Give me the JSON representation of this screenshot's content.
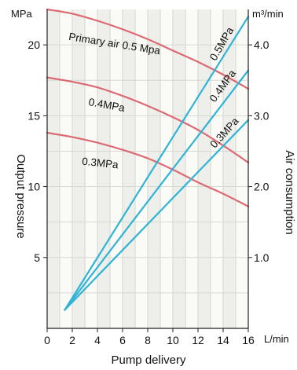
{
  "chart_data": {
    "type": "line",
    "xlabel": "Pump delivery",
    "x_unit": "L/min",
    "xlim": [
      0,
      16
    ],
    "x_ticks": [
      0,
      2,
      4,
      6,
      8,
      10,
      12,
      14,
      16
    ],
    "ylabel_left": "Output pressure",
    "y_unit_left": "MPa",
    "ylim_left": [
      0,
      22.5
    ],
    "y_ticks_left": [
      5,
      10,
      15,
      20
    ],
    "ylabel_right": "Air consumption",
    "y_unit_right": "m³/min",
    "ylim_right": [
      0,
      4.5
    ],
    "y_ticks_right": [
      "1.0",
      "2.0",
      "3.0",
      "4.0"
    ],
    "grid": true,
    "colors": {
      "pressure": "#dc6a72",
      "air": "#2fb3d6",
      "grid": "#d8d8d2",
      "stripe": "#eeeeea"
    },
    "series": [
      {
        "name": "Primary air 0.5 Mpa",
        "kind": "output-pressure",
        "axis": "left",
        "x": [
          0,
          2,
          4,
          6,
          8,
          10,
          12,
          14,
          16
        ],
        "y": [
          22.5,
          22.2,
          21.7,
          21.1,
          20.4,
          19.6,
          18.8,
          17.9,
          16.9
        ]
      },
      {
        "name": "0.4MPa",
        "kind": "output-pressure",
        "axis": "left",
        "x": [
          0,
          2,
          4,
          6,
          8,
          10,
          12,
          14,
          16
        ],
        "y": [
          17.7,
          17.4,
          17.0,
          16.4,
          15.7,
          14.9,
          14.0,
          12.9,
          11.7
        ]
      },
      {
        "name": "0.3MPa",
        "kind": "output-pressure",
        "axis": "left",
        "x": [
          0,
          2,
          4,
          6,
          8,
          10,
          12,
          14,
          16
        ],
        "y": [
          13.8,
          13.5,
          13.1,
          12.6,
          12.0,
          11.2,
          10.3,
          9.5,
          8.6
        ]
      },
      {
        "name": "0.5MPa",
        "kind": "air-consumption",
        "axis": "right",
        "x": [
          1.4,
          16
        ],
        "y": [
          0.26,
          4.4
        ]
      },
      {
        "name": "0.4MPa",
        "kind": "air-consumption",
        "axis": "right",
        "x": [
          1.4,
          16
        ],
        "y": [
          0.26,
          3.64
        ]
      },
      {
        "name": "0.3MPa",
        "kind": "air-consumption",
        "axis": "right",
        "x": [
          1.4,
          16
        ],
        "y": [
          0.26,
          2.94
        ]
      }
    ]
  }
}
